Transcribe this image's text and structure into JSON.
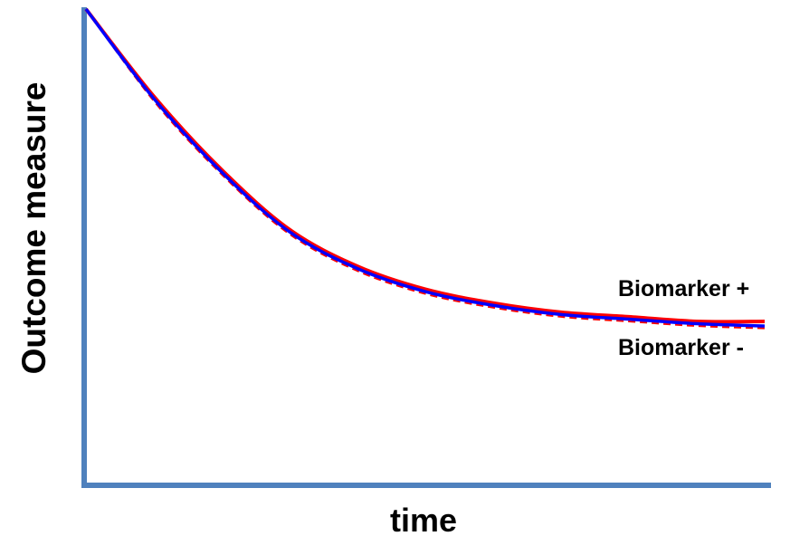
{
  "chart_data": {
    "type": "line",
    "title": "",
    "xlabel": "time",
    "ylabel": "Outcome measure",
    "grid": false,
    "axis_color": "#4f81bd",
    "xlim": [
      0,
      1
    ],
    "ylim": [
      0,
      1
    ],
    "x": [
      0,
      0.1,
      0.2,
      0.3,
      0.4,
      0.5,
      0.6,
      0.7,
      0.8,
      0.9,
      1.0
    ],
    "series": [
      {
        "name": "Biomarker +",
        "color": "#ff0000",
        "style": "solid",
        "values": [
          1.0,
          0.81,
          0.65,
          0.52,
          0.44,
          0.39,
          0.36,
          0.34,
          0.33,
          0.32,
          0.32
        ]
      },
      {
        "name": "Biomarker -",
        "color": "#0000ff",
        "style": "solid",
        "values": [
          1.0,
          0.805,
          0.645,
          0.515,
          0.435,
          0.385,
          0.355,
          0.335,
          0.325,
          0.315,
          0.31
        ]
      },
      {
        "name": "",
        "color": "#ff0000",
        "style": "dashed",
        "values": [
          1.0,
          0.8,
          0.64,
          0.51,
          0.43,
          0.38,
          0.35,
          0.33,
          0.32,
          0.31,
          0.305
        ]
      }
    ],
    "annotations": [
      "Biomarker +",
      "Biomarker -"
    ]
  }
}
